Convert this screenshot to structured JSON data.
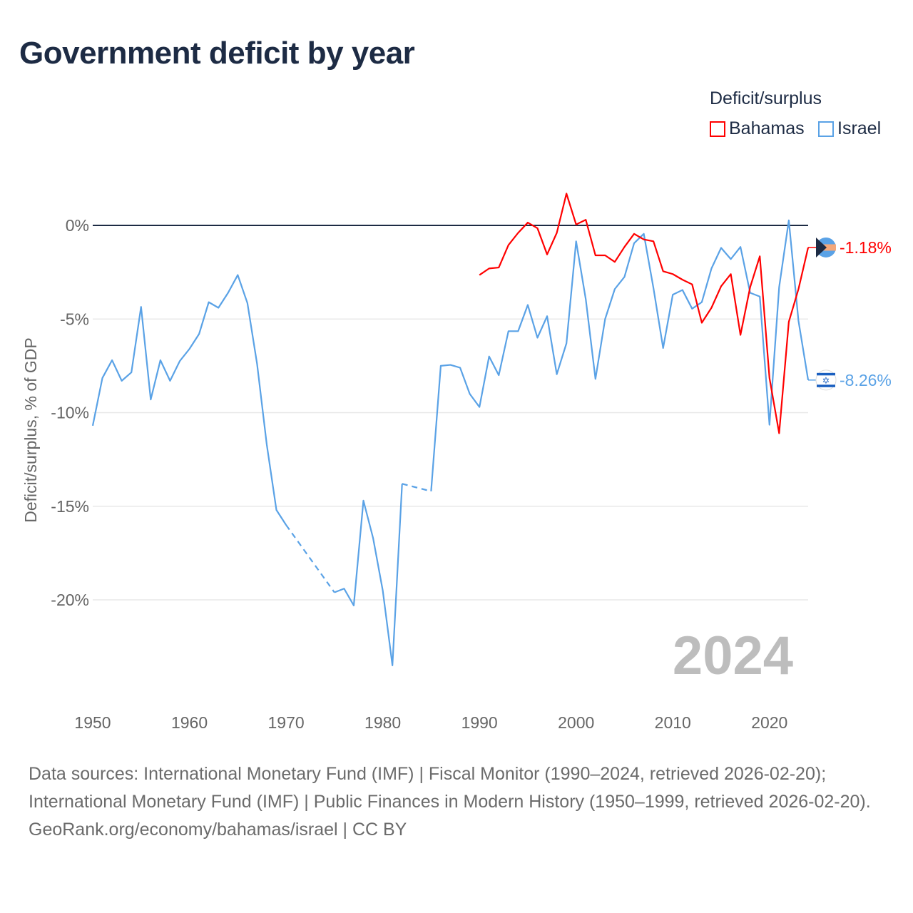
{
  "title": "Government deficit by year",
  "legend": {
    "title": "Deficit/surplus",
    "items": [
      {
        "label": "Bahamas",
        "color": "#ff0000"
      },
      {
        "label": "Israel",
        "color": "#5aa2e6"
      }
    ]
  },
  "year_watermark": "2024",
  "chart_data": {
    "type": "line",
    "title": "Government deficit by year",
    "xlabel": "",
    "ylabel": "Deficit/surplus, % of GDP",
    "xlim": [
      1950,
      2024
    ],
    "ylim": [
      -25,
      2
    ],
    "x_ticks": [
      "1950",
      "1960",
      "1970",
      "1980",
      "1990",
      "2000",
      "2010",
      "2020"
    ],
    "y_ticks": [
      {
        "value": 0,
        "label": "0%"
      },
      {
        "value": -5,
        "label": "-5%"
      },
      {
        "value": -10,
        "label": "-10%"
      },
      {
        "value": -15,
        "label": "-15%"
      },
      {
        "value": -20,
        "label": "-20%"
      }
    ],
    "legend_position": "top-right",
    "series": [
      {
        "name": "Bahamas",
        "color": "#ff0000",
        "end_label": "-1.18%",
        "x": [
          1990,
          1991,
          1992,
          1993,
          1994,
          1995,
          1996,
          1997,
          1998,
          1999,
          2000,
          2001,
          2002,
          2003,
          2004,
          2005,
          2006,
          2007,
          2008,
          2009,
          2010,
          2011,
          2012,
          2013,
          2014,
          2015,
          2016,
          2017,
          2018,
          2019,
          2020,
          2021,
          2022,
          2023,
          2024
        ],
        "values": [
          -2.65,
          -2.3,
          -2.25,
          -1.05,
          -0.4,
          0.15,
          -0.15,
          -1.55,
          -0.4,
          1.7,
          0.05,
          0.3,
          -1.6,
          -1.6,
          -1.95,
          -1.15,
          -0.45,
          -0.75,
          -0.85,
          -2.45,
          -2.6,
          -2.9,
          -3.15,
          -5.2,
          -4.4,
          -3.25,
          -2.6,
          -5.85,
          -3.3,
          -1.65,
          -8.15,
          -11.1,
          -5.15,
          -3.4,
          -1.18
        ]
      },
      {
        "name": "Israel",
        "color": "#5aa2e6",
        "end_label": "-8.26%",
        "x": [
          1950,
          1951,
          1952,
          1953,
          1954,
          1955,
          1956,
          1957,
          1958,
          1959,
          1960,
          1961,
          1962,
          1963,
          1964,
          1965,
          1966,
          1967,
          1968,
          1969,
          1970,
          1975,
          1976,
          1977,
          1978,
          1979,
          1980,
          1981,
          1982,
          1985,
          1986,
          1987,
          1988,
          1989,
          1990,
          1991,
          1992,
          1993,
          1994,
          1995,
          1996,
          1997,
          1998,
          1999,
          2000,
          2001,
          2002,
          2003,
          2004,
          2005,
          2006,
          2007,
          2008,
          2009,
          2010,
          2011,
          2012,
          2013,
          2014,
          2015,
          2016,
          2017,
          2018,
          2019,
          2020,
          2021,
          2022,
          2023,
          2024
        ],
        "values": [
          -10.7,
          -8.15,
          -7.2,
          -8.3,
          -7.85,
          -4.35,
          -9.3,
          -7.2,
          -8.3,
          -7.25,
          -6.6,
          -5.8,
          -4.1,
          -4.4,
          -3.6,
          -2.65,
          -4.15,
          -7.4,
          -11.7,
          -15.2,
          -16.0,
          -19.6,
          -19.4,
          -20.3,
          -14.7,
          -16.7,
          -19.5,
          -23.5,
          -13.8,
          -14.2,
          -7.5,
          -7.45,
          -7.6,
          -9.0,
          -9.7,
          -7.0,
          -8.0,
          -5.65,
          -5.65,
          -4.25,
          -6.0,
          -4.85,
          -7.95,
          -6.3,
          -0.85,
          -3.95,
          -8.2,
          -5.0,
          -3.4,
          -2.75,
          -0.95,
          -0.45,
          -3.35,
          -6.55,
          -3.7,
          -3.45,
          -4.45,
          -4.1,
          -2.3,
          -1.2,
          -1.8,
          -1.15,
          -3.6,
          -3.8,
          -10.65,
          -3.3,
          0.27,
          -5.1,
          -8.26
        ]
      }
    ]
  },
  "footer": {
    "sources": "Data sources: International Monetary Fund (IMF) | Fiscal Monitor (1990–2024, retrieved 2026-02-20); International Monetary Fund (IMF) | Public Finances in Modern History (1950–1999, retrieved 2026-02-20).",
    "link": "GeoRank.org/economy/bahamas/israel | CC BY"
  }
}
